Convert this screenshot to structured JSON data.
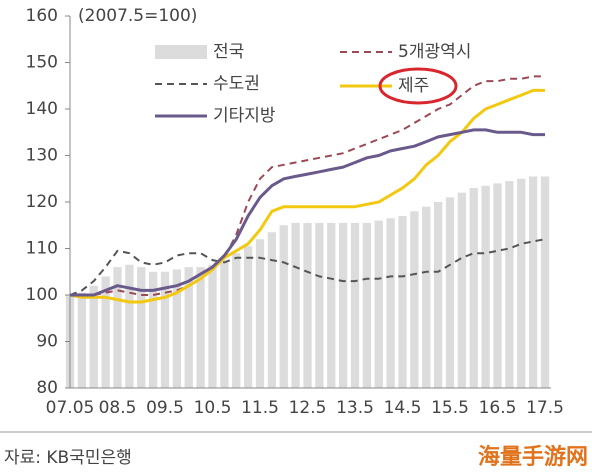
{
  "chart_data": {
    "type": "line",
    "subtitle": "(2007.5=100)",
    "source": "자료: KB국민은행",
    "watermark": "海量手游网",
    "categories": [
      "07.05",
      null,
      null,
      null,
      "08.5",
      null,
      null,
      null,
      "09.5",
      null,
      null,
      null,
      "10.5",
      null,
      null,
      null,
      "11.5",
      null,
      null,
      null,
      "12.5",
      null,
      null,
      null,
      "13.5",
      null,
      null,
      null,
      "14.5",
      null,
      null,
      null,
      "15.5",
      null,
      null,
      null,
      "16.5",
      null,
      null,
      null,
      "17.5"
    ],
    "ylim": [
      80,
      160
    ],
    "yticks": [
      80,
      90,
      100,
      110,
      120,
      130,
      140,
      150,
      160
    ],
    "legend": "top",
    "series": [
      {
        "name": "전국",
        "color": "#dcdcdc",
        "kind": "bar",
        "values": [
          100,
          100.5,
          102,
          104,
          106,
          106.5,
          106,
          105,
          105,
          105.5,
          106,
          106,
          106.5,
          107.5,
          109,
          110.5,
          112,
          113.5,
          115,
          115.5,
          115.5,
          115.5,
          115.5,
          115.5,
          115.5,
          115.5,
          116,
          116.5,
          117,
          118,
          119,
          120,
          121,
          122,
          123,
          123.5,
          124,
          124.5,
          125,
          125.5,
          125.5
        ]
      },
      {
        "name": "5개광역시",
        "color": "#9b4a55",
        "kind": "line",
        "dash": true,
        "values": [
          100,
          100,
          100,
          100.5,
          101,
          100.5,
          100,
          100,
          100.5,
          101,
          102,
          103.5,
          105.5,
          108,
          113,
          120,
          125,
          127.5,
          128,
          128.5,
          129,
          129.5,
          130,
          130.5,
          131.5,
          132.5,
          133.5,
          134.5,
          135.5,
          137,
          138.5,
          140,
          141,
          143,
          145,
          146,
          146,
          146.5,
          146.5,
          147,
          147
        ]
      },
      {
        "name": "수도권",
        "color": "#555555",
        "kind": "line",
        "dash": true,
        "values": [
          100,
          101,
          103,
          106,
          109.5,
          109,
          107,
          106.5,
          107,
          108.5,
          109,
          109,
          107.5,
          107,
          108,
          108,
          108,
          107.5,
          107,
          106,
          105,
          104,
          103.5,
          103,
          103,
          103.5,
          103.5,
          104,
          104,
          104.5,
          105,
          105,
          106.5,
          108,
          109,
          109,
          109.5,
          110,
          111,
          111.5,
          112
        ]
      },
      {
        "name": "제주",
        "color": "#f2c811",
        "kind": "line",
        "dash": false,
        "values": [
          100,
          99.5,
          99.5,
          99.5,
          99,
          98.5,
          98.5,
          99,
          99.5,
          100.5,
          102,
          103.5,
          105.5,
          108,
          109.5,
          111,
          114,
          118,
          119,
          119,
          119,
          119,
          119,
          119,
          119,
          119.5,
          120,
          121.5,
          123,
          125,
          128,
          130,
          133,
          135,
          138,
          140,
          141,
          142,
          143,
          144,
          144
        ]
      },
      {
        "name": "기타지방",
        "color": "#6a5a8c",
        "kind": "line",
        "dash": false,
        "values": [
          100,
          100,
          100,
          101,
          102,
          101.5,
          101,
          101,
          101.5,
          102,
          103,
          104.5,
          106,
          108.5,
          112,
          117,
          121,
          123.5,
          125,
          125.5,
          126,
          126.5,
          127,
          127.5,
          128.5,
          129.5,
          130,
          131,
          131.5,
          132,
          133,
          134,
          134.5,
          135,
          135.5,
          135.5,
          135,
          135,
          135,
          134.5,
          134.5
        ]
      }
    ]
  }
}
